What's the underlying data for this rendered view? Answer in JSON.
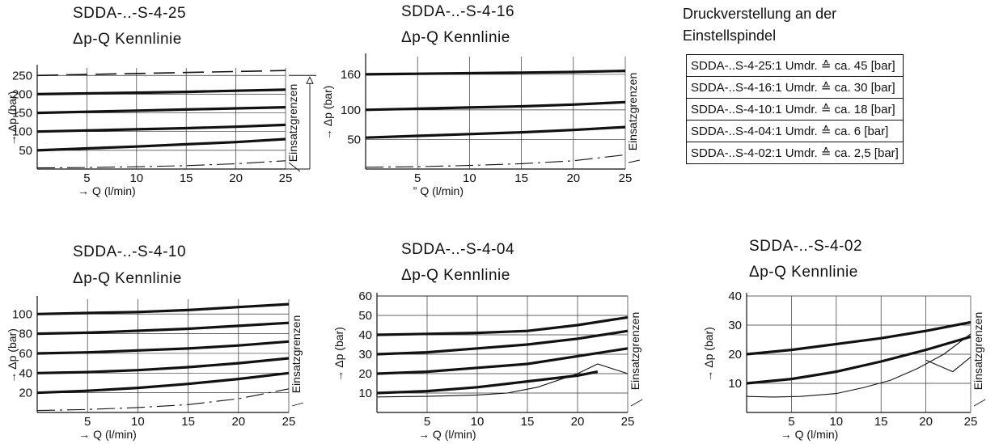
{
  "info": {
    "heading_line1": "Druckverstellung an der",
    "heading_line2": "Einstellspindel",
    "rows": [
      "SDDA-..S-4-25:1 Umdr. ≙ ca. 45 [bar]",
      "SDDA-..S-4-16:1 Umdr. ≙ ca. 30 [bar]",
      "SDDA-..S-4-10:1 Umdr. ≙ ca. 18 [bar]",
      "SDDA-..S-4-04:1 Umdr. ≙ ca.   6 [bar]",
      "SDDA-..S-4-02:1 Umdr. ≙ ca. 2,5 [bar]"
    ]
  },
  "chart_data": [
    {
      "type": "line",
      "title": "SDDA-..-S-4-25",
      "subtitle": "Δp-Q Kennlinie",
      "xlabel": "→ Q (l/min)",
      "ylabel": "→ Δp (bar)",
      "xlim": [
        0,
        25
      ],
      "ylim": [
        0,
        270
      ],
      "x_ticks": [
        5,
        10,
        15,
        20,
        25
      ],
      "y_ticks": [
        50,
        100,
        150,
        200,
        250
      ],
      "limit_label": "Einsatzgrenzen",
      "limit_arrow": true,
      "grid": true,
      "series": [
        {
          "style": "thick",
          "x": [
            0,
            5,
            10,
            15,
            20,
            25
          ],
          "y": [
            50,
            55,
            60,
            66,
            72,
            80
          ]
        },
        {
          "style": "thick",
          "x": [
            0,
            5,
            10,
            15,
            20,
            25
          ],
          "y": [
            100,
            103,
            106,
            109,
            113,
            118
          ]
        },
        {
          "style": "thick",
          "x": [
            0,
            5,
            10,
            15,
            20,
            25
          ],
          "y": [
            150,
            153,
            156,
            159,
            162,
            165
          ]
        },
        {
          "style": "thick",
          "x": [
            0,
            5,
            10,
            15,
            20,
            25
          ],
          "y": [
            200,
            202,
            204,
            206,
            209,
            212
          ]
        },
        {
          "style": "dashed",
          "x": [
            0,
            25
          ],
          "y": [
            250,
            263
          ]
        },
        {
          "style": "dashdot",
          "x": [
            0,
            5,
            10,
            15,
            20,
            23,
            25
          ],
          "y": [
            3,
            4,
            6,
            9,
            14,
            19,
            22
          ]
        }
      ]
    },
    {
      "type": "line",
      "title": "SDDA-..-S-4-16",
      "subtitle": "Δp-Q Kennlinie",
      "xlabel": "” Q (l/min)",
      "ylabel": "→ Δp (bar)",
      "xlim": [
        0,
        25
      ],
      "ylim": [
        0,
        190
      ],
      "x_ticks": [
        5,
        10,
        15,
        20,
        25
      ],
      "y_ticks": [
        50,
        100,
        160
      ],
      "limit_label": "Einsatzgrenzen",
      "limit_arrow": false,
      "grid": true,
      "series": [
        {
          "style": "thick",
          "x": [
            0,
            5,
            10,
            15,
            20,
            25
          ],
          "y": [
            53,
            56,
            59,
            62,
            66,
            71
          ]
        },
        {
          "style": "thick",
          "x": [
            0,
            5,
            10,
            15,
            20,
            25
          ],
          "y": [
            100,
            102,
            104,
            106,
            109,
            113
          ]
        },
        {
          "style": "thick",
          "x": [
            0,
            5,
            10,
            15,
            20,
            25
          ],
          "y": [
            160,
            161,
            162,
            163,
            164,
            166
          ]
        },
        {
          "style": "dashdot",
          "x": [
            0,
            5,
            10,
            15,
            20,
            23,
            25
          ],
          "y": [
            3,
            4,
            6,
            9,
            14,
            20,
            24
          ]
        }
      ]
    },
    {
      "type": "line",
      "title": "SDDA-..-S-4-10",
      "subtitle": "Δp-Q Kennlinie",
      "xlabel": "→ Q (l/min)",
      "ylabel": "→ Δp (bar)",
      "xlim": [
        0,
        25
      ],
      "ylim": [
        0,
        115
      ],
      "x_ticks": [
        5,
        10,
        15,
        20,
        25
      ],
      "y_ticks": [
        20,
        40,
        60,
        80,
        100
      ],
      "limit_label": "Einsatzgrenzen",
      "limit_arrow": false,
      "grid": true,
      "series": [
        {
          "style": "thick",
          "x": [
            0,
            5,
            10,
            15,
            20,
            25
          ],
          "y": [
            20,
            22,
            25,
            29,
            34,
            40
          ]
        },
        {
          "style": "thick",
          "x": [
            0,
            5,
            10,
            15,
            20,
            25
          ],
          "y": [
            40,
            41,
            43,
            46,
            50,
            55
          ]
        },
        {
          "style": "thick",
          "x": [
            0,
            5,
            10,
            15,
            20,
            25
          ],
          "y": [
            60,
            61,
            63,
            65,
            68,
            72
          ]
        },
        {
          "style": "thick",
          "x": [
            0,
            5,
            10,
            15,
            20,
            25
          ],
          "y": [
            80,
            81,
            83,
            85,
            88,
            91
          ]
        },
        {
          "style": "thick",
          "x": [
            0,
            5,
            10,
            15,
            20,
            25
          ],
          "y": [
            100,
            101,
            102,
            104,
            107,
            110
          ]
        },
        {
          "style": "dashdot",
          "x": [
            0,
            5,
            10,
            15,
            20,
            23,
            25
          ],
          "y": [
            2,
            3,
            5,
            8,
            14,
            20,
            24
          ]
        }
      ]
    },
    {
      "type": "line",
      "title": "SDDA-..-S-4-04",
      "subtitle": "Δp-Q Kennlinie",
      "xlabel": "→ Q (l/min)",
      "ylabel": "→ Δp (bar)",
      "xlim": [
        0,
        25
      ],
      "ylim": [
        0,
        60
      ],
      "x_ticks": [
        5,
        10,
        15,
        20,
        25
      ],
      "y_ticks": [
        10,
        20,
        30,
        40,
        50,
        60
      ],
      "limit_label": "Einsatzgrenzen",
      "limit_arrow": false,
      "grid": true,
      "series": [
        {
          "style": "thick",
          "x": [
            0,
            5,
            10,
            15,
            20,
            22
          ],
          "y": [
            10,
            11,
            13,
            16,
            19,
            21
          ]
        },
        {
          "style": "thick",
          "x": [
            0,
            5,
            10,
            15,
            20,
            25
          ],
          "y": [
            20,
            21,
            23,
            25,
            29,
            33
          ]
        },
        {
          "style": "thick",
          "x": [
            0,
            5,
            10,
            15,
            20,
            25
          ],
          "y": [
            30,
            31,
            33,
            35,
            38,
            42
          ]
        },
        {
          "style": "thick",
          "x": [
            0,
            5,
            10,
            15,
            20,
            25
          ],
          "y": [
            40,
            40.5,
            41,
            42,
            45,
            49
          ]
        },
        {
          "style": "thin",
          "x": [
            0,
            5,
            10,
            13,
            16,
            20
          ],
          "y": [
            8,
            8.3,
            9,
            10,
            13,
            20
          ]
        },
        {
          "style": "thin",
          "x": [
            20,
            22,
            25
          ],
          "y": [
            20,
            25,
            20
          ]
        }
      ]
    },
    {
      "type": "line",
      "title": "SDDA-..-S-4-02",
      "subtitle": "Δp-Q Kennlinie",
      "xlabel": "→ Q (l/min)",
      "ylabel": "→ Δp (bar)",
      "xlim": [
        0,
        25
      ],
      "ylim": [
        0,
        40
      ],
      "x_ticks": [
        5,
        10,
        15,
        20,
        25
      ],
      "y_ticks": [
        10,
        20,
        30,
        40
      ],
      "limit_label": "Einsatzgrenzen",
      "limit_arrow": false,
      "grid": true,
      "series": [
        {
          "style": "thick",
          "x": [
            0,
            5,
            10,
            15,
            20,
            25
          ],
          "y": [
            10,
            11.5,
            14,
            17.5,
            21.5,
            26
          ]
        },
        {
          "style": "thick",
          "x": [
            0,
            5,
            10,
            15,
            20,
            25
          ],
          "y": [
            20,
            21.5,
            23.5,
            25.5,
            28,
            31
          ]
        },
        {
          "style": "thin",
          "x": [
            0,
            3,
            6,
            10,
            13,
            16,
            19,
            22,
            25
          ],
          "y": [
            5.5,
            5.3,
            5.5,
            6.5,
            8.5,
            11,
            15,
            20,
            27
          ]
        },
        {
          "style": "thin",
          "x": [
            20,
            23,
            25
          ],
          "y": [
            18,
            14,
            19
          ]
        }
      ]
    }
  ]
}
